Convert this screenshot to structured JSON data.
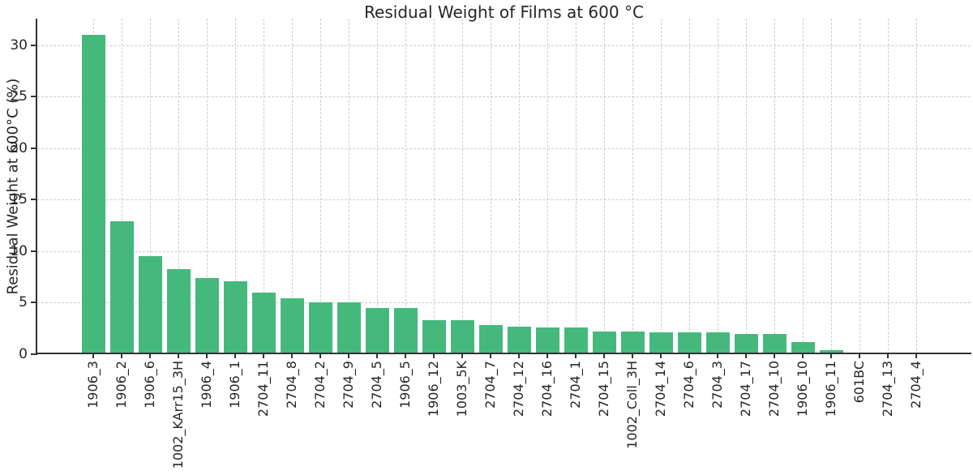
{
  "figure": {
    "title": "Residual Weight of Films at 600 °C"
  },
  "chart_data": {
    "type": "bar",
    "title": "Residual Weight of Films at 600 °C",
    "xlabel": "",
    "ylabel": "Residual Weight at 600°C (%)",
    "categories": [
      "1906_3",
      "1906_2",
      "1906_6",
      "1002_KArr15_3H",
      "1906_4",
      "1906_1",
      "2704_11",
      "2704_8",
      "2704_2",
      "2704_9",
      "2704_5",
      "1906_5",
      "1906_12",
      "1003_5K",
      "2704_7",
      "2704_12",
      "2704_16",
      "2704_1",
      "2704_15",
      "1002_Coll_3H",
      "2704_14",
      "2704_6",
      "2704_3",
      "2704_17",
      "2704_10",
      "1906_10",
      "1906_11",
      "601BC",
      "2704_13",
      "2704_4"
    ],
    "values": [
      31.0,
      12.9,
      9.5,
      8.3,
      7.4,
      7.1,
      6.0,
      5.4,
      5.0,
      5.0,
      4.5,
      4.5,
      3.3,
      3.3,
      2.8,
      2.7,
      2.6,
      2.6,
      2.2,
      2.2,
      2.1,
      2.1,
      2.1,
      2.0,
      2.0,
      1.2,
      0.4,
      0.15,
      0.0,
      0.0
    ],
    "yticks": [
      0,
      5,
      10,
      15,
      20,
      25,
      30
    ],
    "ylim": [
      0,
      32.6
    ],
    "xtick_rotation": 90,
    "grid": {
      "horizontal": true,
      "vertical": true,
      "style": "dashed"
    },
    "bar_color": "#45b97c"
  },
  "colors": {
    "background": "#ffffff",
    "bar": "#45b97c",
    "grid": "#cccccc",
    "axis": "#333333",
    "text": "#262626"
  }
}
